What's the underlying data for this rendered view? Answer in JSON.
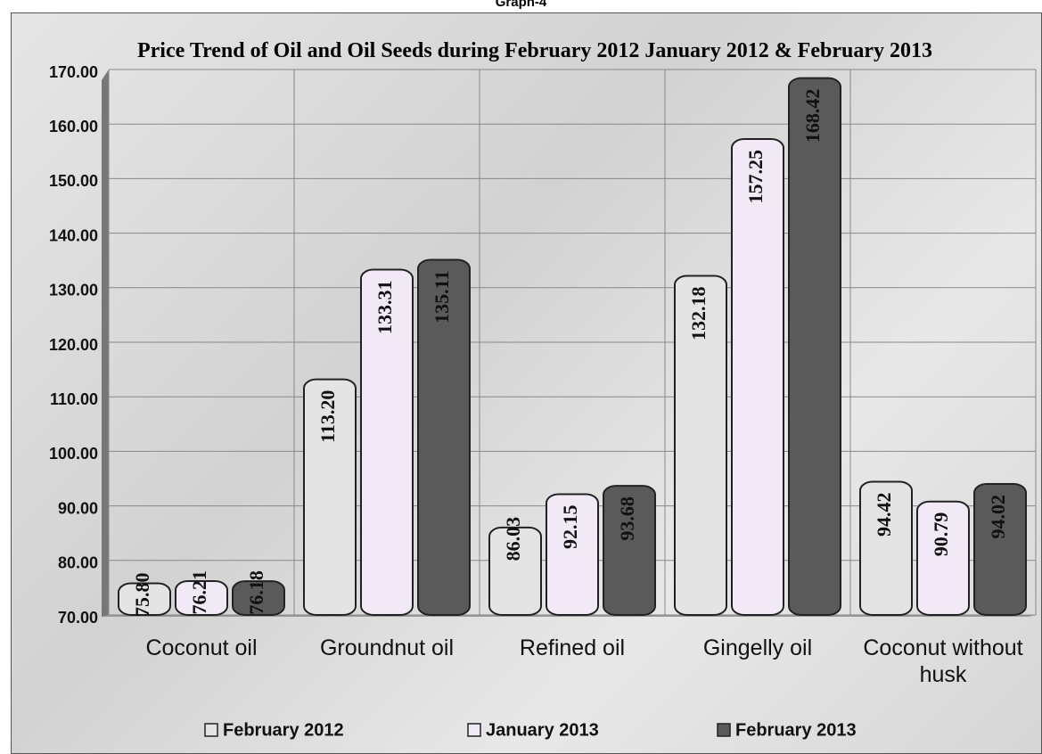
{
  "header": "Graph-4",
  "chart_data": {
    "type": "bar",
    "title": "Price Trend of Oil and Oil Seeds during February  2012 January 2012 & February 2013",
    "categories": [
      "Coconut oil",
      "Groundnut oil",
      "Refined oil",
      "Gingelly oil",
      "Coconut without husk"
    ],
    "series": [
      {
        "name": "February 2012",
        "color": "#e4e4e4",
        "values": [
          75.8,
          113.2,
          86.03,
          132.18,
          94.42
        ],
        "value_labels": [
          "75.80",
          "113.20",
          "86.03",
          "132.18",
          "94.42"
        ]
      },
      {
        "name": "January 2013",
        "color": "#f1e9f5",
        "values": [
          76.21,
          133.31,
          92.15,
          157.25,
          90.79
        ],
        "value_labels": [
          "76.21",
          "133.31",
          "92.15",
          "157.25",
          "90.79"
        ]
      },
      {
        "name": "February 2013",
        "color": "#5a5a5a",
        "values": [
          76.18,
          135.11,
          93.68,
          168.42,
          94.02
        ],
        "value_labels": [
          "76.18",
          "135.11",
          "93.68",
          "168.42",
          "94.02"
        ]
      }
    ],
    "ylim": [
      70,
      170
    ],
    "yticks": [
      {
        "value": 70,
        "label": "70.00"
      },
      {
        "value": 80,
        "label": "80.00"
      },
      {
        "value": 90,
        "label": "90.00"
      },
      {
        "value": 100,
        "label": "100.00"
      },
      {
        "value": 110,
        "label": "110.00"
      },
      {
        "value": 120,
        "label": "120.00"
      },
      {
        "value": 130,
        "label": "130.00"
      },
      {
        "value": 140,
        "label": "140.00"
      },
      {
        "value": 150,
        "label": "150.00"
      },
      {
        "value": 160,
        "label": "160.00"
      },
      {
        "value": 170,
        "label": "170.00"
      }
    ],
    "grid": true,
    "legend": "bottom"
  }
}
